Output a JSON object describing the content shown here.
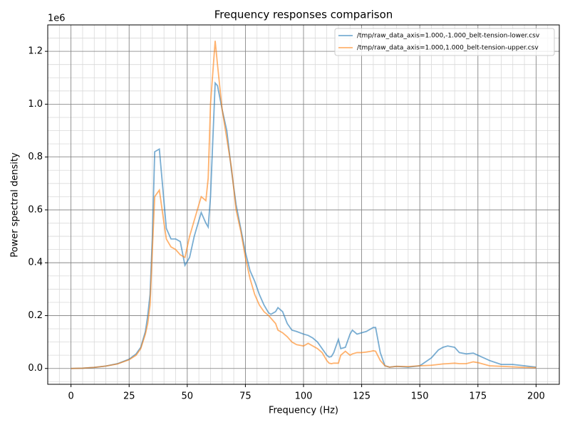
{
  "chart_data": {
    "type": "line",
    "title": "Frequency responses comparison",
    "xlabel": "Frequency (Hz)",
    "ylabel": "Power spectral density",
    "y_offset_label": "1e6",
    "x": [
      0,
      5,
      10,
      15,
      20,
      25,
      28,
      30,
      32,
      33,
      34,
      35,
      36,
      38,
      40,
      41,
      43,
      45,
      47,
      49,
      51,
      53,
      56,
      58,
      59,
      60,
      62,
      63,
      65,
      67,
      69,
      71,
      73,
      75,
      77,
      79,
      81,
      83,
      85,
      86,
      88,
      89,
      91,
      93,
      95,
      97,
      100,
      102,
      104,
      106,
      108,
      110,
      111,
      112,
      113,
      115,
      116,
      118,
      120,
      121,
      123,
      125,
      127,
      129,
      130,
      131,
      133,
      135,
      137,
      140,
      145,
      150,
      155,
      158,
      160,
      162,
      165,
      167,
      170,
      173,
      175,
      180,
      185,
      190,
      195,
      200
    ],
    "series": [
      {
        "name": "/tmp/raw_data_axis=1.000,-1.000_belt-tension-lower.csv",
        "color": "#1f77b4",
        "values": [
          0.0,
          0.001,
          0.004,
          0.009,
          0.018,
          0.035,
          0.055,
          0.08,
          0.14,
          0.2,
          0.28,
          0.5,
          0.82,
          0.83,
          0.63,
          0.53,
          0.49,
          0.49,
          0.48,
          0.39,
          0.42,
          0.5,
          0.59,
          0.55,
          0.535,
          0.65,
          1.08,
          1.07,
          0.98,
          0.9,
          0.75,
          0.62,
          0.53,
          0.44,
          0.37,
          0.33,
          0.28,
          0.24,
          0.21,
          0.205,
          0.215,
          0.23,
          0.215,
          0.17,
          0.145,
          0.14,
          0.13,
          0.125,
          0.115,
          0.1,
          0.075,
          0.05,
          0.043,
          0.045,
          0.06,
          0.11,
          0.075,
          0.08,
          0.13,
          0.145,
          0.13,
          0.135,
          0.14,
          0.15,
          0.155,
          0.155,
          0.06,
          0.01,
          0.005,
          0.008,
          0.005,
          0.01,
          0.04,
          0.07,
          0.08,
          0.085,
          0.08,
          0.06,
          0.055,
          0.058,
          0.05,
          0.03,
          0.015,
          0.015,
          0.01,
          0.005
        ]
      },
      {
        "name": "/tmp/raw_data_axis=1.000,1.000_belt-tension-upper.csv",
        "color": "#ff7f0e",
        "values": [
          0.0,
          0.001,
          0.004,
          0.009,
          0.017,
          0.033,
          0.05,
          0.075,
          0.13,
          0.17,
          0.24,
          0.45,
          0.65,
          0.675,
          0.55,
          0.49,
          0.46,
          0.45,
          0.43,
          0.42,
          0.5,
          0.56,
          0.65,
          0.635,
          0.72,
          1.0,
          1.24,
          1.15,
          0.98,
          0.87,
          0.76,
          0.6,
          0.52,
          0.42,
          0.34,
          0.28,
          0.24,
          0.215,
          0.2,
          0.19,
          0.17,
          0.145,
          0.135,
          0.12,
          0.1,
          0.09,
          0.085,
          0.095,
          0.085,
          0.075,
          0.06,
          0.03,
          0.02,
          0.018,
          0.02,
          0.02,
          0.05,
          0.065,
          0.05,
          0.055,
          0.06,
          0.06,
          0.062,
          0.065,
          0.067,
          0.065,
          0.03,
          0.01,
          0.005,
          0.008,
          0.007,
          0.01,
          0.012,
          0.015,
          0.017,
          0.018,
          0.02,
          0.018,
          0.018,
          0.025,
          0.022,
          0.01,
          0.008,
          0.006,
          0.004,
          0.003
        ]
      }
    ],
    "xlim": [
      -10,
      210
    ],
    "ylim": [
      -0.06,
      1.3
    ],
    "xticks": [
      0,
      25,
      50,
      75,
      100,
      125,
      150,
      175,
      200
    ],
    "yticks": [
      {
        "value": 0,
        "label": "0.0"
      },
      0.2,
      0.4,
      0.6,
      0.8,
      {
        "value": 1,
        "label": "1.0"
      },
      1.2
    ],
    "grid": true,
    "minor_grid": true,
    "legend": "upper right"
  }
}
